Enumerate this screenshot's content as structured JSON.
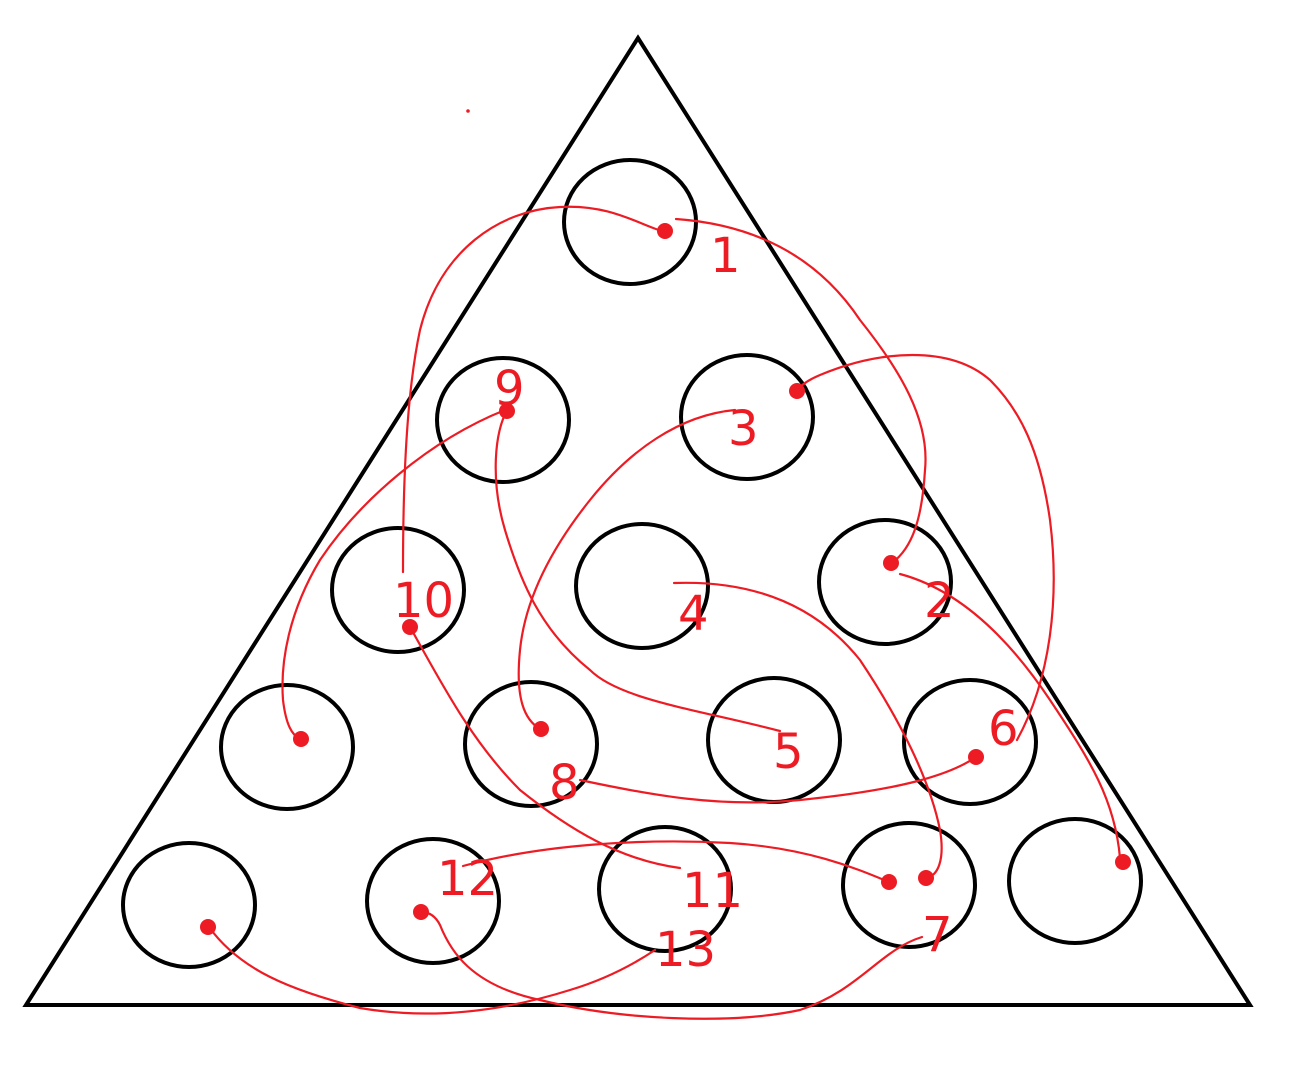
{
  "colors": {
    "outline": "#000000",
    "moves": "#ed1c24",
    "background": "#ffffff"
  },
  "board": {
    "shape": "triangle",
    "rows": 5,
    "holes": 15
  },
  "moves": [
    {
      "label": "1"
    },
    {
      "label": "2"
    },
    {
      "label": "3"
    },
    {
      "label": "4"
    },
    {
      "label": "5"
    },
    {
      "label": "6"
    },
    {
      "label": "7"
    },
    {
      "label": "8"
    },
    {
      "label": "9"
    },
    {
      "label": "10"
    },
    {
      "label": "11"
    },
    {
      "label": "12"
    },
    {
      "label": "13"
    }
  ]
}
